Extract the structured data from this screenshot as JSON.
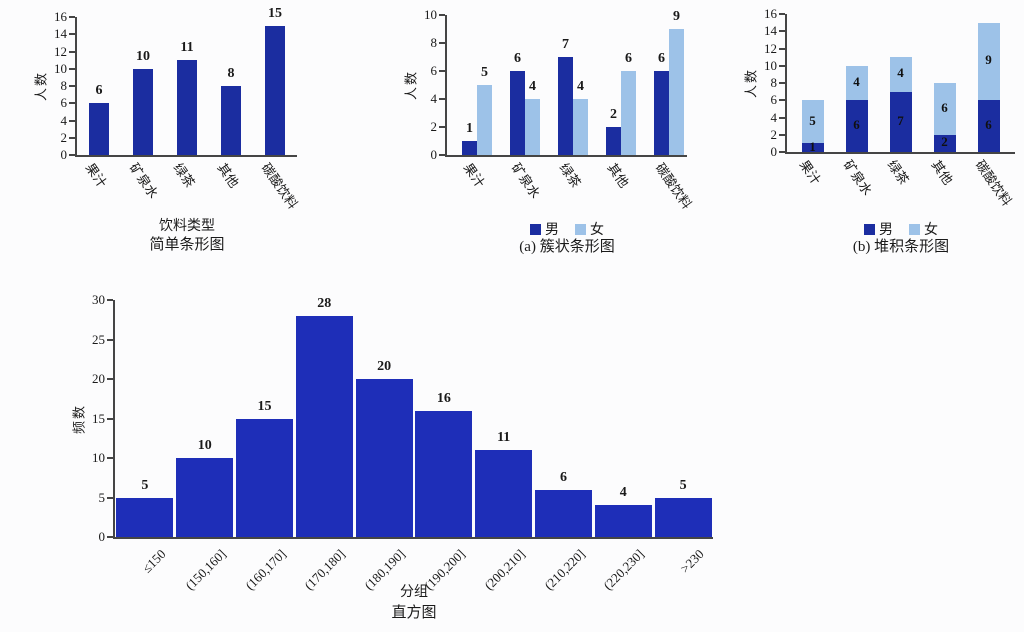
{
  "page": {
    "background": "#fcfcfd"
  },
  "colors": {
    "male_dark_blue": "#1b2da0",
    "female_light_blue": "#9dc2e8",
    "histogram_blue": "#1e2eb8",
    "axis": "#454545",
    "text": "#1a1a1a"
  },
  "chart_data": [
    {
      "id": "simple",
      "type": "bar",
      "subtype": "simple",
      "title": "简单条形图",
      "xlabel": "饮料类型",
      "ylabel": "人数",
      "categories": [
        "果汁",
        "矿泉水",
        "绿茶",
        "其他",
        "碳酸饮料"
      ],
      "values": [
        6,
        10,
        11,
        8,
        15
      ],
      "ylim": [
        0,
        16
      ],
      "ystep": 2,
      "bar_color": "#1b2da0",
      "grid": false,
      "legend_position": "none"
    },
    {
      "id": "clustered",
      "type": "bar",
      "subtype": "clustered",
      "caption": "(a) 簇状条形图",
      "ylabel": "人数",
      "categories": [
        "果汁",
        "矿泉水",
        "绿茶",
        "其他",
        "碳酸饮料"
      ],
      "series": [
        {
          "name": "男",
          "color": "#1b2da0",
          "values": [
            1,
            6,
            7,
            2,
            6
          ]
        },
        {
          "name": "女",
          "color": "#9dc2e8",
          "values": [
            5,
            4,
            4,
            6,
            9
          ]
        }
      ],
      "ylim": [
        0,
        10
      ],
      "ystep": 2,
      "grid": false,
      "legend_position": "bottom"
    },
    {
      "id": "stacked",
      "type": "bar",
      "subtype": "stacked",
      "caption": "(b) 堆积条形图",
      "ylabel": "人数",
      "categories": [
        "果汁",
        "矿泉水",
        "绿茶",
        "其他",
        "碳酸饮料"
      ],
      "series": [
        {
          "name": "男",
          "color": "#1b2da0",
          "values": [
            1,
            6,
            7,
            2,
            6
          ]
        },
        {
          "name": "女",
          "color": "#9dc2e8",
          "values": [
            5,
            4,
            4,
            6,
            9
          ]
        }
      ],
      "ylim": [
        0,
        16
      ],
      "ystep": 2,
      "grid": false,
      "legend_position": "bottom"
    },
    {
      "id": "histogram",
      "type": "bar",
      "subtype": "histogram",
      "title": "直方图",
      "xlabel": "分组",
      "ylabel": "频数",
      "categories": [
        "≤150",
        "(150,160]",
        "(160,170]",
        "(170,180]",
        "(180,190]",
        "(190,200]",
        "(200,210]",
        "(210,220]",
        "(220,230]",
        ">230"
      ],
      "values": [
        5,
        10,
        15,
        28,
        20,
        16,
        11,
        6,
        4,
        5
      ],
      "ylim": [
        0,
        30
      ],
      "ystep": 5,
      "bar_color": "#1e2eb8",
      "grid": false,
      "legend_position": "none"
    }
  ]
}
